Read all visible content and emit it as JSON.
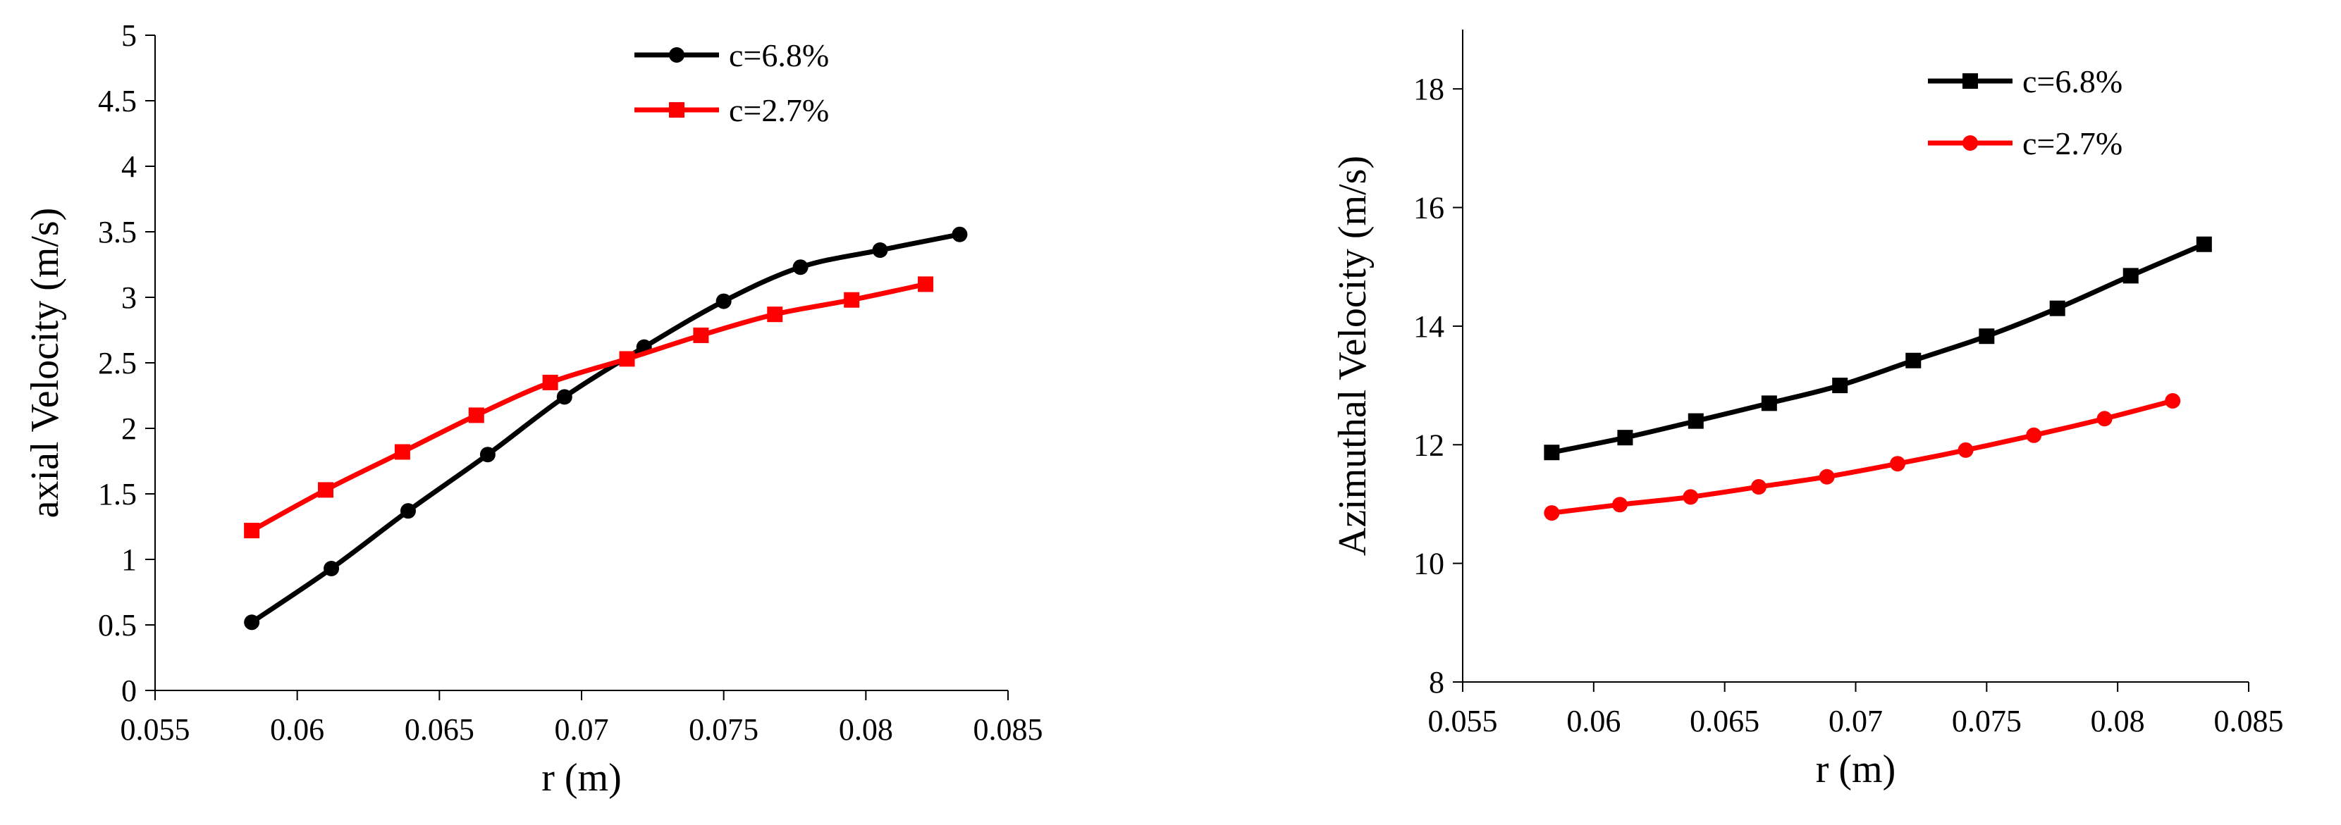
{
  "chart_data": [
    {
      "type": "line",
      "xlabel": "r (m)",
      "ylabel": "axial Velocity (m/s)",
      "xlim": [
        0.055,
        0.085
      ],
      "ylim": [
        0,
        5
      ],
      "xticks": [
        "0.055",
        "0.06",
        "0.065",
        "0.07",
        "0.075",
        "0.08",
        "0.085"
      ],
      "yticks": [
        "0",
        "0.5",
        "1",
        "1.5",
        "2",
        "2.5",
        "3",
        "3.5",
        "4",
        "4.5",
        "5"
      ],
      "grid": false,
      "legend_position": "top-right",
      "series": [
        {
          "name": "c=6.8%",
          "color": "#000000",
          "marker": "circle",
          "x": [
            0.0584,
            0.0612,
            0.0639,
            0.0667,
            0.0694,
            0.0722,
            0.075,
            0.0777,
            0.0805,
            0.0833
          ],
          "y": [
            0.52,
            0.93,
            1.37,
            1.8,
            2.24,
            2.62,
            2.97,
            3.23,
            3.36,
            3.48
          ]
        },
        {
          "name": "c=2.7%",
          "color": "#ff0000",
          "marker": "square",
          "x": [
            0.0584,
            0.061,
            0.0637,
            0.0663,
            0.0689,
            0.0716,
            0.0742,
            0.0768,
            0.0795,
            0.0821
          ],
          "y": [
            1.22,
            1.53,
            1.82,
            2.1,
            2.35,
            2.53,
            2.71,
            2.87,
            2.98,
            3.1
          ]
        }
      ]
    },
    {
      "type": "line",
      "xlabel": "r (m)",
      "ylabel": "Azimuthal Velocity (m/s)",
      "xlim": [
        0.055,
        0.085
      ],
      "ylim": [
        8,
        19
      ],
      "xticks": [
        "0.055",
        "0.06",
        "0.065",
        "0.07",
        "0.075",
        "0.08",
        "0.085"
      ],
      "yticks": [
        "8",
        "10",
        "12",
        "14",
        "16",
        "18"
      ],
      "grid": false,
      "legend_position": "top-right",
      "series": [
        {
          "name": "c=6.8%",
          "color": "#000000",
          "marker": "square",
          "x": [
            0.0584,
            0.0612,
            0.0639,
            0.0667,
            0.0694,
            0.0722,
            0.075,
            0.0777,
            0.0805,
            0.0833
          ],
          "y": [
            11.87,
            12.12,
            12.4,
            12.7,
            13.0,
            13.42,
            13.83,
            14.3,
            14.85,
            15.38
          ]
        },
        {
          "name": "c=2.7%",
          "color": "#ff0000",
          "marker": "circle",
          "x": [
            0.0584,
            0.061,
            0.0637,
            0.0663,
            0.0689,
            0.0716,
            0.0742,
            0.0768,
            0.0795,
            0.0821
          ],
          "y": [
            10.85,
            10.99,
            11.12,
            11.29,
            11.46,
            11.68,
            11.91,
            12.16,
            12.44,
            12.74
          ]
        }
      ]
    }
  ]
}
